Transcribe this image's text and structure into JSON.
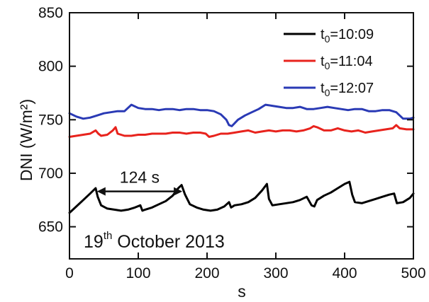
{
  "chart_data": {
    "type": "line",
    "xlabel": "s",
    "ylabel": "DNI (W/m²)",
    "xlim": [
      0,
      500
    ],
    "ylim": [
      620,
      850
    ],
    "xticks": [
      0,
      100,
      200,
      300,
      400,
      500
    ],
    "yticks": [
      650,
      700,
      750,
      800,
      850
    ],
    "grid": false,
    "legend_position": "top-right",
    "series": [
      {
        "name": "t0=10:09",
        "color": "#000000",
        "x": [
          0,
          10,
          20,
          30,
          38,
          41,
          46,
          55,
          65,
          75,
          85,
          95,
          103,
          106,
          110,
          120,
          130,
          140,
          150,
          158,
          163,
          168,
          175,
          185,
          195,
          205,
          215,
          225,
          232,
          235,
          240,
          250,
          260,
          270,
          280,
          287,
          290,
          295,
          305,
          315,
          325,
          335,
          345,
          352,
          356,
          360,
          370,
          380,
          390,
          400,
          407,
          411,
          415,
          425,
          435,
          445,
          455,
          465,
          472,
          476,
          485,
          495,
          500
        ],
        "y": [
          663,
          669,
          675,
          681,
          686,
          678,
          670,
          667,
          666,
          665,
          666,
          668,
          670,
          665,
          666,
          668,
          671,
          674,
          679,
          686,
          689,
          680,
          671,
          668,
          666,
          665,
          666,
          669,
          673,
          668,
          670,
          671,
          673,
          677,
          684,
          690,
          676,
          670,
          671,
          672,
          673,
          675,
          678,
          670,
          669,
          675,
          679,
          682,
          686,
          690,
          692,
          680,
          673,
          672,
          674,
          676,
          678,
          680,
          681,
          672,
          673,
          677,
          681
        ]
      },
      {
        "name": "t0=11:04",
        "color": "#e8231d",
        "x": [
          0,
          10,
          20,
          30,
          38,
          42,
          46,
          55,
          63,
          67,
          70,
          80,
          90,
          100,
          110,
          120,
          130,
          140,
          150,
          160,
          170,
          180,
          190,
          198,
          203,
          210,
          220,
          230,
          240,
          250,
          260,
          270,
          280,
          290,
          300,
          310,
          320,
          330,
          340,
          350,
          355,
          360,
          370,
          380,
          390,
          400,
          410,
          420,
          430,
          440,
          450,
          460,
          470,
          475,
          480,
          490,
          500
        ],
        "y": [
          734,
          735,
          736,
          737,
          740,
          737,
          735,
          736,
          740,
          743,
          737,
          735,
          735,
          736,
          736,
          737,
          737,
          737,
          738,
          738,
          737,
          738,
          738,
          737,
          734,
          735,
          737,
          737,
          738,
          739,
          740,
          738,
          739,
          740,
          739,
          740,
          740,
          739,
          740,
          742,
          744,
          743,
          740,
          740,
          742,
          740,
          739,
          740,
          738,
          739,
          740,
          741,
          742,
          745,
          742,
          741,
          741
        ]
      },
      {
        "name": "t0=12:07",
        "color": "#2a3ab5",
        "x": [
          0,
          10,
          20,
          30,
          40,
          50,
          60,
          70,
          80,
          85,
          90,
          100,
          110,
          120,
          130,
          140,
          150,
          160,
          170,
          180,
          190,
          200,
          210,
          220,
          228,
          232,
          236,
          245,
          255,
          265,
          275,
          285,
          295,
          305,
          315,
          325,
          335,
          345,
          355,
          365,
          375,
          385,
          395,
          405,
          415,
          425,
          435,
          445,
          455,
          465,
          475,
          485,
          495,
          500
        ],
        "y": [
          756,
          753,
          751,
          752,
          754,
          756,
          757,
          758,
          758,
          761,
          764,
          761,
          760,
          760,
          759,
          760,
          760,
          759,
          760,
          760,
          759,
          759,
          758,
          755,
          750,
          745,
          744,
          750,
          754,
          757,
          760,
          764,
          763,
          762,
          761,
          761,
          762,
          760,
          760,
          761,
          762,
          761,
          760,
          759,
          760,
          760,
          758,
          758,
          759,
          759,
          757,
          751,
          751,
          752
        ]
      }
    ],
    "annotations": [
      {
        "text": "124 s",
        "x_start": 40,
        "x_end": 164,
        "y": 683
      },
      {
        "text": "19",
        "sup": "th",
        "rest": " October 2013"
      }
    ]
  }
}
